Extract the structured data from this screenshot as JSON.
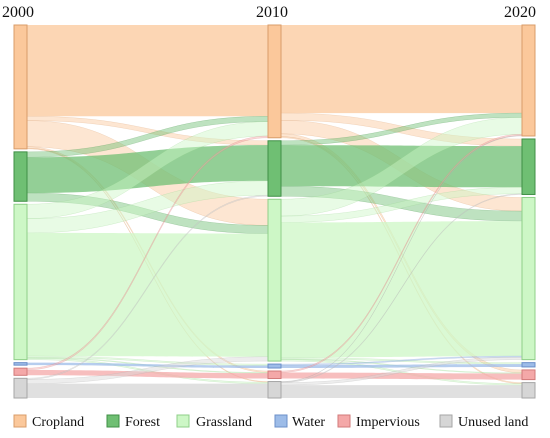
{
  "years": [
    "2000",
    "2010",
    "2020"
  ],
  "classes": [
    {
      "id": "cropland",
      "label": "Cropland",
      "color": "#fbc89b",
      "stroke": "#d89c6a"
    },
    {
      "id": "forest",
      "label": "Forest",
      "color": "#6fbf73",
      "stroke": "#3f8f45"
    },
    {
      "id": "grassland",
      "label": "Grassland",
      "color": "#cdf7c6",
      "stroke": "#8fcf88"
    },
    {
      "id": "water",
      "label": "Water",
      "color": "#9dbce8",
      "stroke": "#6b8fc9"
    },
    {
      "id": "impervious",
      "label": "Impervious",
      "color": "#f4a8a8",
      "stroke": "#d27a7a"
    },
    {
      "id": "unused",
      "label": "Unused land",
      "color": "#d6d6d6",
      "stroke": "#a6a6a6"
    }
  ],
  "node_share": {
    "2000": {
      "cropland": 0.346,
      "forest": 0.138,
      "grassland": 0.434,
      "water": 0.007,
      "impervious": 0.02,
      "unused": 0.055
    },
    "2010": {
      "cropland": 0.315,
      "forest": 0.155,
      "grassland": 0.452,
      "water": 0.011,
      "impervious": 0.021,
      "unused": 0.046
    },
    "2020": {
      "cropland": 0.31,
      "forest": 0.155,
      "grassland": 0.453,
      "water": 0.012,
      "impervious": 0.027,
      "unused": 0.043
    }
  },
  "transitions": [
    {
      "from_year": "2000",
      "to_year": "2010",
      "flows": [
        {
          "from": "cropland",
          "to": "cropland",
          "share": 0.255
        },
        {
          "from": "cropland",
          "to": "forest",
          "share": 0.012
        },
        {
          "from": "cropland",
          "to": "grassland",
          "share": 0.073
        },
        {
          "from": "cropland",
          "to": "impervious",
          "share": 0.004
        },
        {
          "from": "cropland",
          "to": "unused",
          "share": 0.002
        },
        {
          "from": "forest",
          "to": "cropland",
          "share": 0.015
        },
        {
          "from": "forest",
          "to": "forest",
          "share": 0.1
        },
        {
          "from": "forest",
          "to": "grassland",
          "share": 0.023
        },
        {
          "from": "grassland",
          "to": "cropland",
          "share": 0.04
        },
        {
          "from": "grassland",
          "to": "forest",
          "share": 0.04
        },
        {
          "from": "grassland",
          "to": "grassland",
          "share": 0.344
        },
        {
          "from": "grassland",
          "to": "water",
          "share": 0.004
        },
        {
          "from": "grassland",
          "to": "impervious",
          "share": 0.002
        },
        {
          "from": "grassland",
          "to": "unused",
          "share": 0.004
        },
        {
          "from": "water",
          "to": "water",
          "share": 0.007
        },
        {
          "from": "impervious",
          "to": "impervious",
          "share": 0.015
        },
        {
          "from": "impervious",
          "to": "cropland",
          "share": 0.005
        },
        {
          "from": "unused",
          "to": "grassland",
          "share": 0.012
        },
        {
          "from": "unused",
          "to": "forest",
          "share": 0.003
        },
        {
          "from": "unused",
          "to": "unused",
          "share": 0.04
        }
      ]
    },
    {
      "from_year": "2010",
      "to_year": "2020",
      "flows": [
        {
          "from": "cropland",
          "to": "cropland",
          "share": 0.246
        },
        {
          "from": "cropland",
          "to": "forest",
          "share": 0.02
        },
        {
          "from": "cropland",
          "to": "grassland",
          "share": 0.038
        },
        {
          "from": "cropland",
          "to": "impervious",
          "share": 0.008
        },
        {
          "from": "cropland",
          "to": "unused",
          "share": 0.003
        },
        {
          "from": "forest",
          "to": "cropland",
          "share": 0.012
        },
        {
          "from": "forest",
          "to": "forest",
          "share": 0.115
        },
        {
          "from": "forest",
          "to": "grassland",
          "share": 0.028
        },
        {
          "from": "grassland",
          "to": "cropland",
          "share": 0.047
        },
        {
          "from": "grassland",
          "to": "forest",
          "share": 0.018
        },
        {
          "from": "grassland",
          "to": "grassland",
          "share": 0.377
        },
        {
          "from": "grassland",
          "to": "water",
          "share": 0.004
        },
        {
          "from": "grassland",
          "to": "impervious",
          "share": 0.002
        },
        {
          "from": "grassland",
          "to": "unused",
          "share": 0.004
        },
        {
          "from": "water",
          "to": "water",
          "share": 0.008
        },
        {
          "from": "water",
          "to": "grassland",
          "share": 0.003
        },
        {
          "from": "impervious",
          "to": "impervious",
          "share": 0.017
        },
        {
          "from": "impervious",
          "to": "cropland",
          "share": 0.004
        },
        {
          "from": "unused",
          "to": "grassland",
          "share": 0.007
        },
        {
          "from": "unused",
          "to": "forest",
          "share": 0.002
        },
        {
          "from": "unused",
          "to": "unused",
          "share": 0.036
        },
        {
          "from": "unused",
          "to": "cropland",
          "share": 0.001
        }
      ]
    }
  ]
}
